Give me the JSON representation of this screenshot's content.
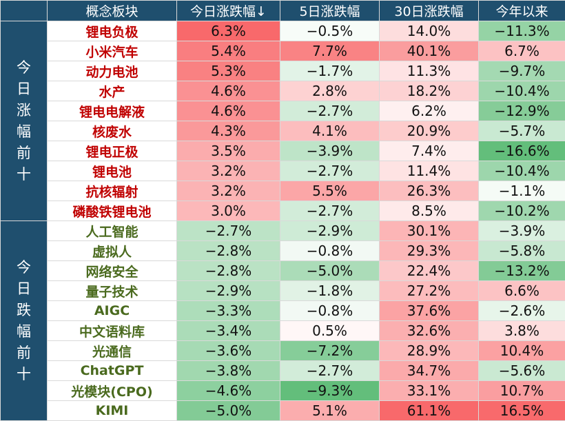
{
  "header": {
    "concept": "概念板块",
    "today": "今日涨跌幅↓",
    "d5": "5日涨跌幅",
    "d30": "30日涨跌幅",
    "ytd": "今年以来"
  },
  "sections": [
    {
      "label": "今日涨幅前十",
      "chars": [
        "今",
        "日",
        "涨",
        "幅",
        "前",
        "十"
      ],
      "kind": "gain",
      "rows": [
        {
          "name": "锂电负极",
          "today": "6.3%",
          "d5": "−0.5%",
          "d30": "14.0%",
          "ytd": "−11.3%"
        },
        {
          "name": "小米汽车",
          "today": "5.4%",
          "d5": "7.7%",
          "d30": "40.1%",
          "ytd": "6.7%"
        },
        {
          "name": "动力电池",
          "today": "5.3%",
          "d5": "−1.7%",
          "d30": "11.3%",
          "ytd": "−9.7%"
        },
        {
          "name": "水产",
          "today": "4.6%",
          "d5": "2.8%",
          "d30": "18.2%",
          "ytd": "−10.4%"
        },
        {
          "name": "锂电电解液",
          "today": "4.6%",
          "d5": "−2.7%",
          "d30": "6.2%",
          "ytd": "−12.9%"
        },
        {
          "name": "核废水",
          "today": "4.3%",
          "d5": "4.1%",
          "d30": "20.9%",
          "ytd": "−5.7%"
        },
        {
          "name": "锂电正极",
          "today": "3.5%",
          "d5": "−3.9%",
          "d30": "7.4%",
          "ytd": "−16.6%"
        },
        {
          "name": "锂电池",
          "today": "3.2%",
          "d5": "−2.7%",
          "d30": "11.4%",
          "ytd": "−10.4%"
        },
        {
          "name": "抗核辐射",
          "today": "3.2%",
          "d5": "5.5%",
          "d30": "26.3%",
          "ytd": "−1.1%"
        },
        {
          "name": "磷酸铁锂电池",
          "today": "3.0%",
          "d5": "−2.7%",
          "d30": "8.5%",
          "ytd": "−10.2%"
        }
      ]
    },
    {
      "label": "今日跌幅前十",
      "chars": [
        "今",
        "日",
        "跌",
        "幅",
        "前",
        "十"
      ],
      "kind": "loss",
      "rows": [
        {
          "name": "人工智能",
          "today": "−2.7%",
          "d5": "−2.9%",
          "d30": "30.1%",
          "ytd": "−3.9%"
        },
        {
          "name": "虚拟人",
          "today": "−2.8%",
          "d5": "−0.8%",
          "d30": "29.3%",
          "ytd": "−5.8%"
        },
        {
          "name": "网络安全",
          "today": "−2.8%",
          "d5": "−5.0%",
          "d30": "22.4%",
          "ytd": "−13.2%"
        },
        {
          "name": "量子技术",
          "today": "−2.9%",
          "d5": "−1.8%",
          "d30": "27.2%",
          "ytd": "6.6%"
        },
        {
          "name": "AIGC",
          "today": "−3.3%",
          "d5": "−0.8%",
          "d30": "37.6%",
          "ytd": "−2.6%"
        },
        {
          "name": "中文语料库",
          "today": "−3.4%",
          "d5": "0.5%",
          "d30": "32.6%",
          "ytd": "3.8%"
        },
        {
          "name": "光通信",
          "today": "−3.6%",
          "d5": "−7.2%",
          "d30": "28.9%",
          "ytd": "10.4%"
        },
        {
          "name": "ChatGPT",
          "today": "−3.8%",
          "d5": "−2.7%",
          "d30": "34.7%",
          "ytd": "−5.6%"
        },
        {
          "name": "光模块(CPO)",
          "today": "−4.6%",
          "d5": "−9.3%",
          "d30": "33.1%",
          "ytd": "10.7%"
        },
        {
          "name": "KIMI",
          "today": "−5.0%",
          "d5": "5.1%",
          "d30": "61.1%",
          "ytd": "16.5%"
        }
      ]
    }
  ],
  "chart_data": {
    "type": "table",
    "columns": [
      "概念板块",
      "今日涨跌幅↓",
      "5日涨跌幅",
      "30日涨跌幅",
      "今年以来"
    ],
    "row_groups": [
      "今日涨幅前十",
      "今日跌幅前十"
    ],
    "rows": [
      [
        "锂电负极",
        6.3,
        -0.5,
        14.0,
        -11.3
      ],
      [
        "小米汽车",
        5.4,
        7.7,
        40.1,
        6.7
      ],
      [
        "动力电池",
        5.3,
        -1.7,
        11.3,
        -9.7
      ],
      [
        "水产",
        4.6,
        2.8,
        18.2,
        -10.4
      ],
      [
        "锂电电解液",
        4.6,
        -2.7,
        6.2,
        -12.9
      ],
      [
        "核废水",
        4.3,
        4.1,
        20.9,
        -5.7
      ],
      [
        "锂电正极",
        3.5,
        -3.9,
        7.4,
        -16.6
      ],
      [
        "锂电池",
        3.2,
        -2.7,
        11.4,
        -10.4
      ],
      [
        "抗核辐射",
        3.2,
        5.5,
        26.3,
        -1.1
      ],
      [
        "磷酸铁锂电池",
        3.0,
        -2.7,
        8.5,
        -10.2
      ],
      [
        "人工智能",
        -2.7,
        -2.9,
        30.1,
        -3.9
      ],
      [
        "虚拟人",
        -2.8,
        -0.8,
        29.3,
        -5.8
      ],
      [
        "网络安全",
        -2.8,
        -5.0,
        22.4,
        -13.2
      ],
      [
        "量子技术",
        -2.9,
        -1.8,
        27.2,
        6.6
      ],
      [
        "AIGC",
        -3.3,
        -0.8,
        37.6,
        -2.6
      ],
      [
        "中文语料库",
        -3.4,
        0.5,
        32.6,
        3.8
      ],
      [
        "光通信",
        -3.6,
        -7.2,
        28.9,
        10.4
      ],
      [
        "ChatGPT",
        -3.8,
        -2.7,
        34.7,
        -5.6
      ],
      [
        "光模块(CPO)",
        -4.6,
        -9.3,
        33.1,
        10.7
      ],
      [
        "KIMI",
        -5.0,
        5.1,
        61.1,
        16.5
      ]
    ],
    "colors": {
      "header_bg": "#1f4f6e",
      "gain_text": "#c00000",
      "loss_text": "#4a6a1e",
      "positive_cell": "#f8696b",
      "negative_cell": "#63be7b"
    }
  }
}
